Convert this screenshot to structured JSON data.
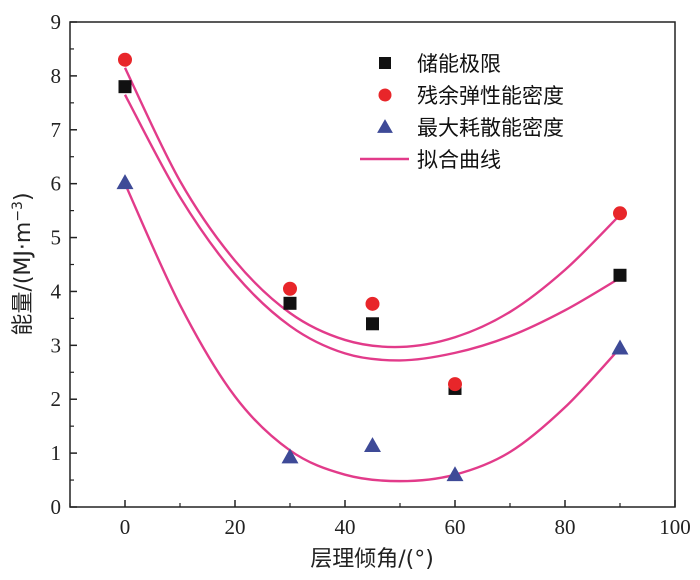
{
  "chart_data": {
    "type": "scatter",
    "title": "",
    "xlabel": "层理倾角/(°)",
    "ylabel_prefix": "能量/(MJ·m",
    "ylabel_sup": "−3",
    "ylabel_suffix": ")",
    "xlim": [
      -10,
      100
    ],
    "ylim": [
      0,
      9
    ],
    "xticks": [
      0,
      20,
      40,
      60,
      80,
      100
    ],
    "yticks": [
      0,
      1,
      2,
      3,
      4,
      5,
      6,
      7,
      8,
      9
    ],
    "grid": false,
    "legend_position": "top-right",
    "series": [
      {
        "name": "储能极限",
        "marker": "square",
        "color": "#111111",
        "x": [
          0,
          30,
          45,
          60,
          90
        ],
        "y": [
          7.8,
          3.78,
          3.4,
          2.2,
          4.3
        ],
        "fit_x": [
          0,
          10,
          20,
          30,
          40,
          50,
          60,
          70,
          80,
          90
        ],
        "fit_y": [
          7.65,
          5.75,
          4.32,
          3.36,
          2.85,
          2.72,
          2.86,
          3.17,
          3.65,
          4.25
        ]
      },
      {
        "name": "残余弹性能密度",
        "marker": "circle",
        "color": "#e8262a",
        "x": [
          0,
          30,
          45,
          60,
          90
        ],
        "y": [
          8.3,
          4.05,
          3.77,
          2.28,
          5.45
        ],
        "fit_x": [
          0,
          10,
          20,
          30,
          40,
          50,
          60,
          70,
          80,
          90
        ],
        "fit_y": [
          8.15,
          6.05,
          4.57,
          3.6,
          3.1,
          2.97,
          3.15,
          3.62,
          4.4,
          5.42
        ]
      },
      {
        "name": "最大耗散能密度",
        "marker": "triangle",
        "color": "#3e4a97",
        "x": [
          0,
          30,
          45,
          60,
          90
        ],
        "y": [
          6.02,
          0.93,
          1.14,
          0.6,
          2.95
        ],
        "fit_x": [
          0,
          10,
          20,
          30,
          40,
          50,
          60,
          70,
          80,
          90
        ],
        "fit_y": [
          6.0,
          3.75,
          2.05,
          1.05,
          0.6,
          0.48,
          0.6,
          1.02,
          1.85,
          2.95
        ]
      }
    ],
    "fit_line": {
      "name": "拟合曲线",
      "color": "#e23b8a"
    }
  }
}
